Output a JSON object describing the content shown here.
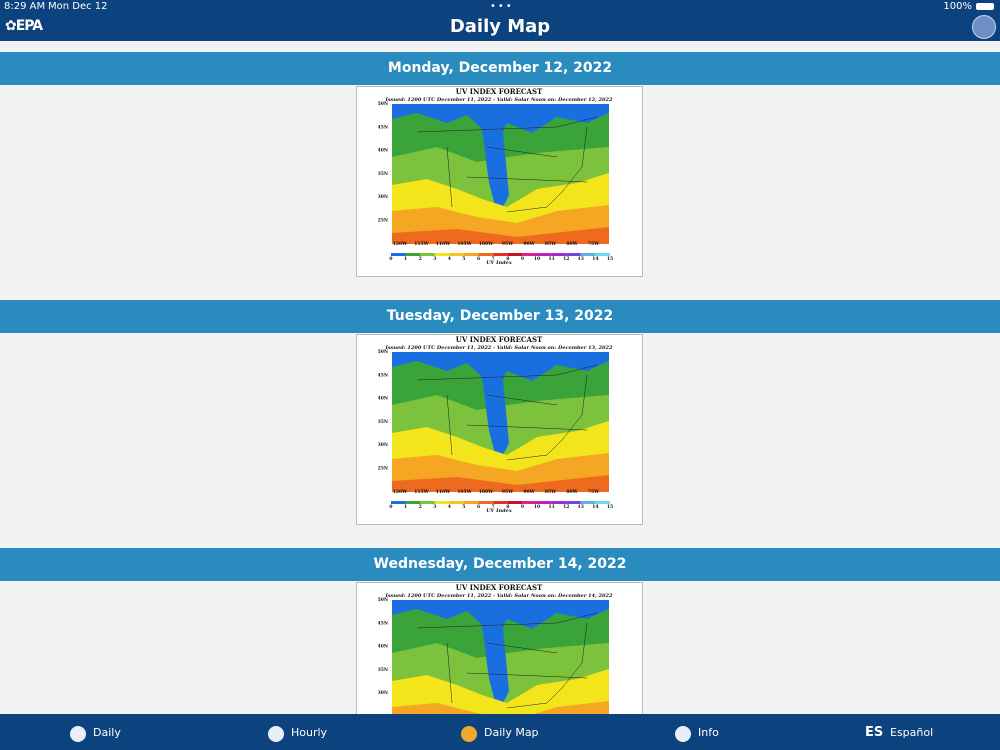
{
  "status_bar": {
    "time": "8:29 AM",
    "date": "Mon Dec 12",
    "battery": "100%"
  },
  "header": {
    "logo": "EPA",
    "title": "Daily Map"
  },
  "days": [
    {
      "heading": "Monday, December 12, 2022",
      "map": {
        "title": "UV INDEX FORECAST",
        "issued": "Issued: 1200 UTC December 11, 2022  -  Valid: Solar Noon on: December 12, 2022",
        "lat_labels": [
          "50N",
          "45N",
          "40N",
          "35N",
          "30N",
          "25N"
        ],
        "lon_labels": [
          "120W",
          "115W",
          "110W",
          "105W",
          "100W",
          "95W",
          "90W",
          "85W",
          "80W",
          "75W"
        ],
        "scale_labels": [
          0,
          1,
          2,
          3,
          4,
          5,
          6,
          7,
          8,
          9,
          10,
          11,
          12,
          13,
          14,
          15
        ],
        "scale_title": "UV Index"
      }
    },
    {
      "heading": "Tuesday, December 13, 2022",
      "map": {
        "title": "UV INDEX FORECAST",
        "issued": "Issued: 1200 UTC December 11, 2022  -  Valid: Solar Noon on: December 13, 2022",
        "lat_labels": [
          "50N",
          "45N",
          "40N",
          "35N",
          "30N",
          "25N"
        ],
        "lon_labels": [
          "120W",
          "115W",
          "110W",
          "105W",
          "100W",
          "95W",
          "90W",
          "85W",
          "80W",
          "75W"
        ],
        "scale_labels": [
          0,
          1,
          2,
          3,
          4,
          5,
          6,
          7,
          8,
          9,
          10,
          11,
          12,
          13,
          14,
          15
        ],
        "scale_title": "UV Index"
      }
    },
    {
      "heading": "Wednesday, December 14, 2022",
      "map": {
        "title": "UV INDEX FORECAST",
        "issued": "Issued: 1200 UTC December 11, 2022  -  Valid: Solar Noon on: December 14, 2022",
        "lat_labels": [
          "50N",
          "45N",
          "40N",
          "35N",
          "30N"
        ]
      }
    }
  ],
  "tabs": [
    {
      "label": "Daily"
    },
    {
      "label": "Hourly"
    },
    {
      "label": "Daily Map"
    },
    {
      "label": "Info"
    },
    {
      "icon_text": "ES",
      "label": "Español"
    }
  ]
}
